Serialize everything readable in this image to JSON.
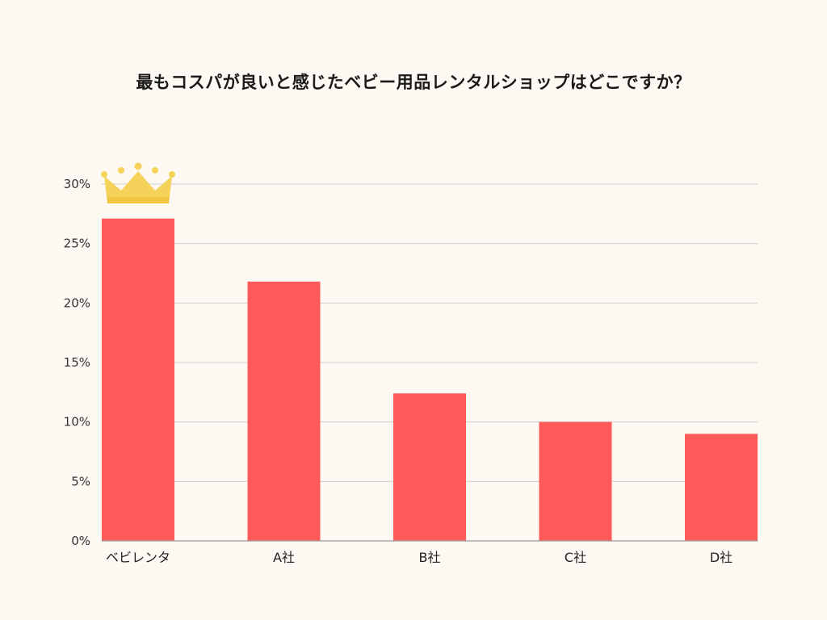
{
  "chart_data": {
    "type": "bar",
    "title": "最もコスパが良いと感じたベビー用品レンタルショップはどこですか？",
    "xlabel": "",
    "ylabel": "",
    "categories": [
      "ベビレンタ",
      "A社",
      "B社",
      "C社",
      "D社"
    ],
    "values": [
      27.1,
      21.8,
      12.4,
      10.0,
      9.0
    ],
    "ylim": [
      0,
      30
    ],
    "yticks": [
      "0%",
      "5%",
      "10%",
      "15%",
      "20%",
      "25%",
      "30%"
    ],
    "ytick_values": [
      0,
      5,
      10,
      15,
      20,
      25,
      30
    ],
    "grid": true,
    "bar_color": "#ff5a5a",
    "highlight_icon": "crown-icon",
    "highlight_color": "#f5d35b",
    "highlight_index": 0
  }
}
